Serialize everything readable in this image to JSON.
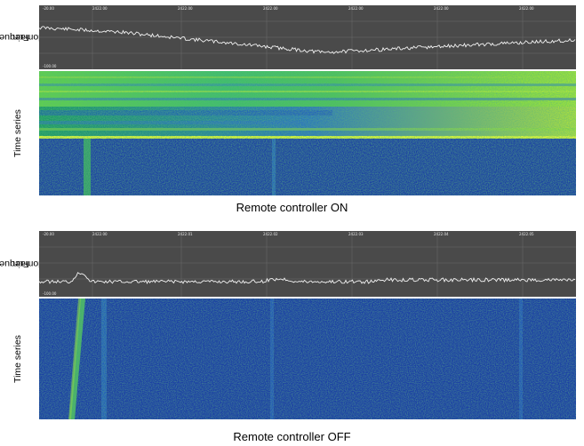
{
  "panels": [
    {
      "caption": "Remote controller ON",
      "freq_label": [
        "Frequency",
        "domain"
      ],
      "ts_label": "Time series",
      "tick_labels": [
        "2422.00",
        "2422.00",
        "2422.00",
        "2422.00",
        "2422.00",
        "2422.00"
      ],
      "axis_corner_top": "-20.00",
      "axis_corner_bottom": "-100.00",
      "colors": {
        "low": "#1a3fa0",
        "high": "#c8f000"
      }
    },
    {
      "caption": "Remote controller OFF",
      "freq_label": [
        "Frequency",
        "domain"
      ],
      "ts_label": "Time series",
      "tick_labels": [
        "2422.00",
        "2422.01",
        "2422.02",
        "2422.03",
        "2422.04",
        "2422.05"
      ],
      "axis_corner_top": "-20.00",
      "axis_corner_bottom": "-100.00",
      "colors": {
        "low": "#1a3fa0",
        "high": "#6fd23a"
      }
    }
  ]
}
